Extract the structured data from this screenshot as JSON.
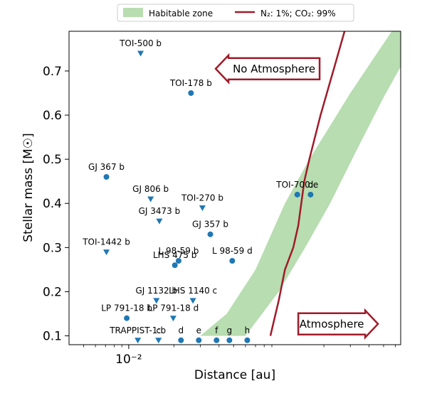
{
  "chart_data": {
    "type": "scatter",
    "xlabel": "Distance [au]",
    "ylabel": "Stellar mass [M☉]",
    "xscale": "log",
    "xlim": [
      0.004,
      0.65
    ],
    "ylim": [
      0.08,
      0.79
    ],
    "x_ticks": [
      {
        "value": 0.01,
        "label": "10⁻²"
      }
    ],
    "y_ticks": [
      0.1,
      0.2,
      0.3,
      0.4,
      0.5,
      0.6,
      0.7
    ],
    "grid": false,
    "legend": {
      "position": "top-center",
      "items": [
        {
          "label": "Habitable zone",
          "color": "#b7ddb0"
        },
        {
          "label": "N₂: 1%; CO₂: 99%",
          "color": "#a01b2a"
        }
      ]
    },
    "colors": {
      "marker": "#1f77b4",
      "hz_fill": "#b7ddb0",
      "line": "#a01b2a"
    },
    "habitable_zone": {
      "inner": [
        [
          0.03,
          0.1
        ],
        [
          0.045,
          0.15
        ],
        [
          0.07,
          0.25
        ],
        [
          0.11,
          0.4
        ],
        [
          0.16,
          0.5
        ],
        [
          0.3,
          0.65
        ],
        [
          0.65,
          0.82
        ]
      ],
      "outer": [
        [
          0.06,
          0.1
        ],
        [
          0.1,
          0.2
        ],
        [
          0.15,
          0.3
        ],
        [
          0.22,
          0.4
        ],
        [
          0.33,
          0.52
        ],
        [
          0.5,
          0.64
        ],
        [
          0.65,
          0.71
        ]
      ]
    },
    "atmosphere_line": {
      "name": "N₂: 1%; CO₂: 99%",
      "points": [
        [
          0.088,
          0.1
        ],
        [
          0.1,
          0.18
        ],
        [
          0.11,
          0.25
        ],
        [
          0.125,
          0.3
        ],
        [
          0.135,
          0.35
        ],
        [
          0.148,
          0.45
        ],
        [
          0.16,
          0.5
        ],
        [
          0.19,
          0.6
        ],
        [
          0.24,
          0.72
        ],
        [
          0.28,
          0.8
        ]
      ]
    },
    "planets": [
      {
        "name": "TOI-500 b",
        "label": "TOI-500 b",
        "x": 0.012,
        "y": 0.74,
        "marker": "triangle"
      },
      {
        "name": "TOI-178 b",
        "label": "TOI-178 b",
        "x": 0.026,
        "y": 0.65,
        "marker": "circle"
      },
      {
        "name": "GJ 367 b",
        "label": "GJ 367 b",
        "x": 0.0071,
        "y": 0.46,
        "marker": "circle"
      },
      {
        "name": "GJ 806 b",
        "label": "GJ 806 b",
        "x": 0.014,
        "y": 0.41,
        "marker": "triangle"
      },
      {
        "name": "TOI-270 b",
        "label": "TOI-270 b",
        "x": 0.031,
        "y": 0.39,
        "marker": "triangle"
      },
      {
        "name": "GJ 3473 b",
        "label": "GJ 3473 b",
        "x": 0.016,
        "y": 0.36,
        "marker": "triangle"
      },
      {
        "name": "GJ 357 b",
        "label": "GJ 357 b",
        "x": 0.035,
        "y": 0.33,
        "marker": "circle"
      },
      {
        "name": "TOI-700 e",
        "label": "TOI-700:e",
        "x": 0.133,
        "y": 0.42,
        "marker": "circle"
      },
      {
        "name": "TOI-700 d",
        "label": "d",
        "x": 0.163,
        "y": 0.42,
        "marker": "circle"
      },
      {
        "name": "TOI-1442 b",
        "label": "TOI-1442 b",
        "x": 0.0071,
        "y": 0.29,
        "marker": "triangle"
      },
      {
        "name": "L 98-59 b",
        "label": "L 98-59 b",
        "x": 0.0215,
        "y": 0.27,
        "marker": "circle"
      },
      {
        "name": "LHS 475 b",
        "label": "LHS 475 b",
        "x": 0.0203,
        "y": 0.26,
        "marker": "circle"
      },
      {
        "name": "L 98-59 d",
        "label": "L 98-59 d",
        "x": 0.049,
        "y": 0.27,
        "marker": "circle"
      },
      {
        "name": "GJ 1132 b",
        "label": "GJ 1132 b",
        "x": 0.0153,
        "y": 0.18,
        "marker": "triangle"
      },
      {
        "name": "LHS 1140 c",
        "label": "LHS 1140 c",
        "x": 0.0268,
        "y": 0.18,
        "marker": "triangle"
      },
      {
        "name": "LP 791-18 b",
        "label": "LP 791-18 b",
        "x": 0.0097,
        "y": 0.14,
        "marker": "circle"
      },
      {
        "name": "LP 791-18 d",
        "label": "LP 791-18 d",
        "x": 0.0198,
        "y": 0.14,
        "marker": "triangle"
      },
      {
        "name": "TRAPPIST-1 b",
        "label": "TRAPPIST-1:b",
        "x": 0.0115,
        "y": 0.09,
        "marker": "triangle"
      },
      {
        "name": "TRAPPIST-1 c",
        "label": "c",
        "x": 0.0158,
        "y": 0.09,
        "marker": "triangle"
      },
      {
        "name": "TRAPPIST-1 d",
        "label": "d",
        "x": 0.0223,
        "y": 0.09,
        "marker": "circle"
      },
      {
        "name": "TRAPPIST-1 e",
        "label": "e",
        "x": 0.0293,
        "y": 0.09,
        "marker": "circle"
      },
      {
        "name": "TRAPPIST-1 f",
        "label": "f",
        "x": 0.0385,
        "y": 0.09,
        "marker": "circle"
      },
      {
        "name": "TRAPPIST-1 g",
        "label": "g",
        "x": 0.0469,
        "y": 0.09,
        "marker": "circle"
      },
      {
        "name": "TRAPPIST-1 h",
        "label": "h",
        "x": 0.0617,
        "y": 0.09,
        "marker": "circle"
      }
    ],
    "annotations": [
      {
        "text": "No Atmosphere",
        "direction": "left",
        "anchor_x": 0.038,
        "anchor_y": 0.705
      },
      {
        "text": "Atmosphere",
        "direction": "right",
        "anchor_x": 0.135,
        "anchor_y": 0.127
      }
    ]
  }
}
